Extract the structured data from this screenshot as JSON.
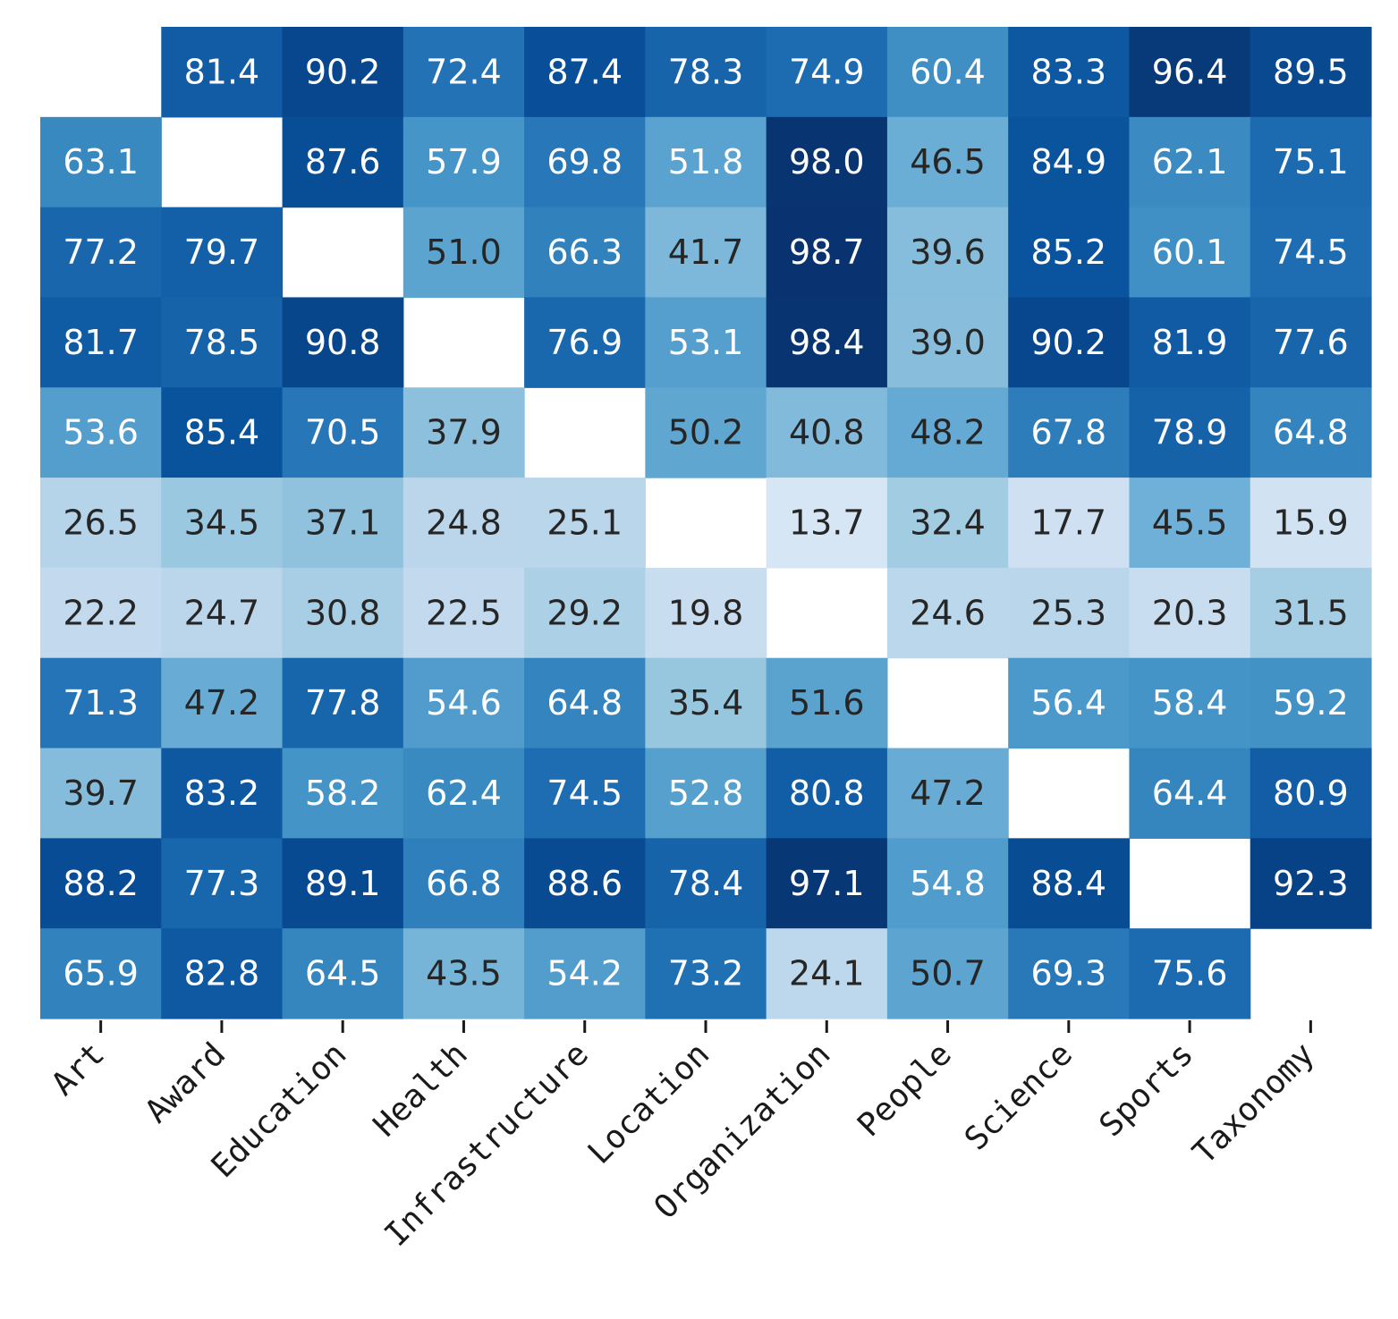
{
  "chart_data": {
    "type": "heatmap",
    "title": "",
    "xlabel": "",
    "ylabel": "",
    "colormap": "Blues",
    "vmin": 0,
    "vmax": 100,
    "x_categories": [
      "Art",
      "Award",
      "Education",
      "Health",
      "Infrastructure",
      "Location",
      "Organization",
      "People",
      "Science",
      "Sports",
      "Taxonomy"
    ],
    "row_count": 11,
    "y_tick_labels_visible": false,
    "values": [
      [
        null,
        81.4,
        90.2,
        72.4,
        87.4,
        78.3,
        74.9,
        60.4,
        83.3,
        96.4,
        89.5
      ],
      [
        63.1,
        null,
        87.6,
        57.9,
        69.8,
        51.8,
        98.0,
        46.5,
        84.9,
        62.1,
        75.1
      ],
      [
        77.2,
        79.7,
        null,
        51.0,
        66.3,
        41.7,
        98.7,
        39.6,
        85.2,
        60.1,
        74.5
      ],
      [
        81.7,
        78.5,
        90.8,
        null,
        76.9,
        53.1,
        98.4,
        39.0,
        90.2,
        81.9,
        77.6
      ],
      [
        53.6,
        85.4,
        70.5,
        37.9,
        null,
        50.2,
        40.8,
        48.2,
        67.8,
        78.9,
        64.8
      ],
      [
        26.5,
        34.5,
        37.1,
        24.8,
        25.1,
        null,
        13.7,
        32.4,
        17.7,
        45.5,
        15.9
      ],
      [
        22.2,
        24.7,
        30.8,
        22.5,
        29.2,
        19.8,
        null,
        24.6,
        25.3,
        20.3,
        31.5
      ],
      [
        71.3,
        47.2,
        77.8,
        54.6,
        64.8,
        35.4,
        51.6,
        null,
        56.4,
        58.4,
        59.2
      ],
      [
        39.7,
        83.2,
        58.2,
        62.4,
        74.5,
        52.8,
        80.8,
        47.2,
        null,
        64.4,
        80.9
      ],
      [
        88.2,
        77.3,
        89.1,
        66.8,
        88.6,
        78.4,
        97.1,
        54.8,
        88.4,
        null,
        92.3
      ],
      [
        65.9,
        82.8,
        64.5,
        43.5,
        54.2,
        73.2,
        24.1,
        50.7,
        69.3,
        75.6,
        null
      ]
    ],
    "grid": false,
    "legend": "none",
    "colorbar": false
  }
}
